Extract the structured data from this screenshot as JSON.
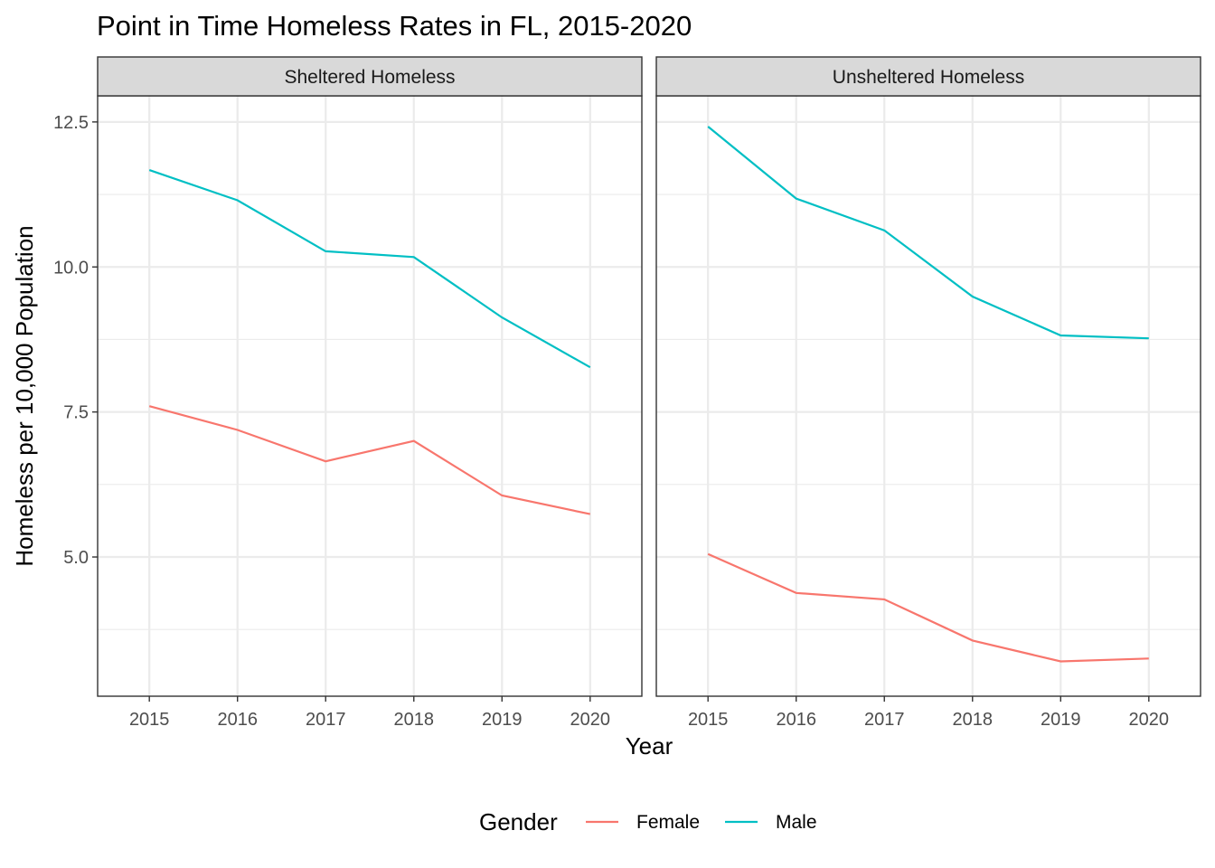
{
  "chart_data": {
    "type": "line",
    "title": "Point in Time Homeless Rates in FL, 2015-2020",
    "xlabel": "Year",
    "ylabel": "Homeless per 10,000 Population",
    "x": [
      2015,
      2016,
      2017,
      2018,
      2019,
      2020
    ],
    "ylim": [
      2.6,
      12.95
    ],
    "y_ticks": [
      5.0,
      7.5,
      10.0,
      12.5
    ],
    "y_tick_labels": [
      "5.0",
      "7.5",
      "10.0",
      "12.5"
    ],
    "x_tick_labels": [
      "2015",
      "2016",
      "2017",
      "2018",
      "2019",
      "2020"
    ],
    "grid": true,
    "legend": {
      "title": "Gender",
      "position": "bottom",
      "entries": [
        "Female",
        "Male"
      ]
    },
    "colors": {
      "Female": "#F8766D",
      "Male": "#00BFC4"
    },
    "panels": [
      {
        "label": "Sheltered Homeless",
        "series": [
          {
            "name": "Female",
            "values": [
              7.6,
              7.19,
              6.65,
              7.0,
              6.06,
              5.74
            ]
          },
          {
            "name": "Male",
            "values": [
              11.67,
              11.15,
              10.27,
              10.17,
              9.13,
              8.27
            ]
          }
        ]
      },
      {
        "label": "Unsheltered Homeless",
        "series": [
          {
            "name": "Female",
            "values": [
              5.05,
              4.38,
              4.27,
              3.56,
              3.2,
              3.25
            ]
          },
          {
            "name": "Male",
            "values": [
              12.42,
              11.18,
              10.63,
              9.49,
              8.82,
              8.77
            ]
          }
        ]
      }
    ]
  }
}
